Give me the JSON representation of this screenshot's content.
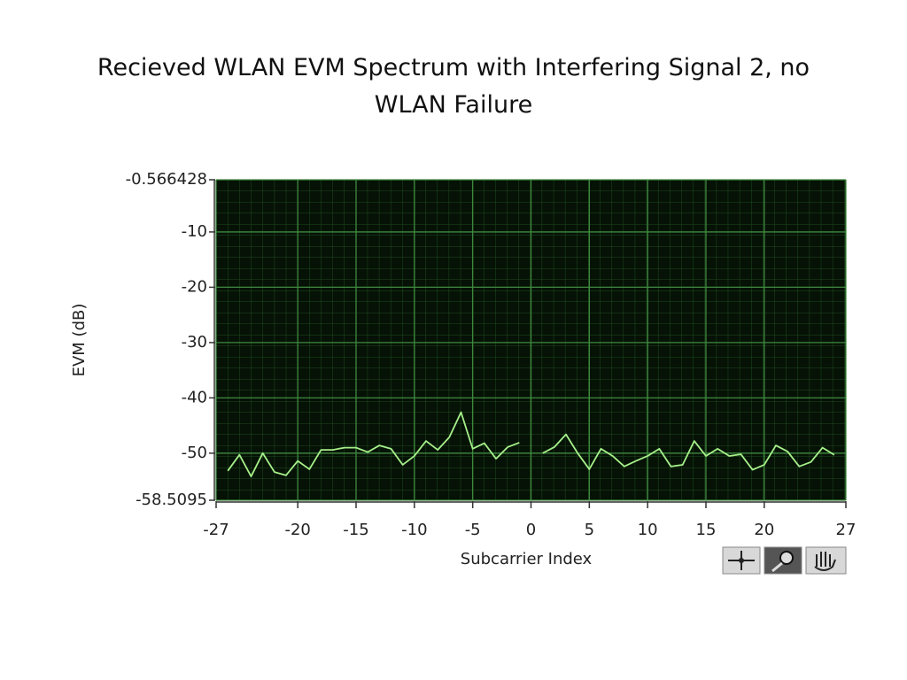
{
  "chart_data": {
    "type": "line",
    "title": "Recieved WLAN EVM Spectrum with Interfering Signal 2, no WLAN Failure",
    "x_label": "Subcarrier Index",
    "y_label": "EVM (dB)",
    "x": [
      -26,
      -25,
      -24,
      -23,
      -22,
      -21,
      -20,
      -19,
      -18,
      -17,
      -16,
      -15,
      -14,
      -13,
      -12,
      -11,
      -10,
      -9,
      -8,
      -7,
      -6,
      -5,
      -4,
      -3,
      -2,
      -1,
      0,
      1,
      2,
      3,
      4,
      5,
      6,
      7,
      8,
      9,
      10,
      11,
      12,
      13,
      14,
      15,
      16,
      17,
      18,
      19,
      20,
      21,
      22,
      23,
      24,
      25,
      26
    ],
    "values": [
      -53.2,
      -50.3,
      -54.2,
      -50.0,
      -53.4,
      -54.0,
      -51.4,
      -52.9,
      -49.4,
      -49.4,
      -49.0,
      -49.0,
      -49.8,
      -48.6,
      -49.2,
      -52.1,
      -50.5,
      -47.8,
      -49.4,
      -47.1,
      -42.6,
      -49.2,
      -48.2,
      -51.0,
      -48.9,
      -48.1,
      null,
      -50.0,
      -48.9,
      -46.6,
      -50.0,
      -52.9,
      -49.2,
      -50.5,
      -52.4,
      -51.4,
      -50.5,
      -49.2,
      -52.4,
      -52.1,
      -47.8,
      -50.5,
      -49.2,
      -50.5,
      -50.2,
      -53.0,
      -52.1,
      -48.6,
      -49.7,
      -52.4,
      -51.6,
      -49.0,
      -50.3
    ],
    "color": "#a6f08a",
    "xlim": [
      -27,
      27
    ],
    "ylim": [
      -58.5095,
      -0.566428
    ],
    "xticks": [
      -27,
      -20,
      -15,
      -10,
      -5,
      0,
      5,
      10,
      15,
      20,
      27
    ],
    "yticks": [
      -0.566428,
      -10,
      -20,
      -30,
      -40,
      -50,
      -58.5095
    ],
    "grid": true
  }
}
